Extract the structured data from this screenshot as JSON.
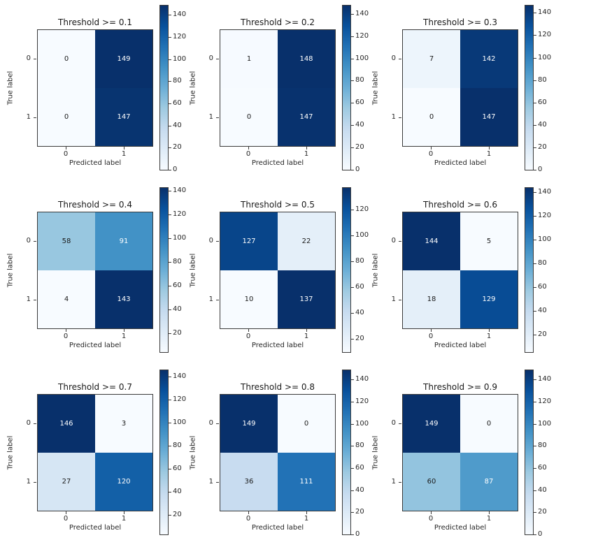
{
  "figure": {
    "background": "#ffffff",
    "description": "3x3 grid of confusion matrices at classification thresholds 0.1 through 0.9"
  },
  "colormap": {
    "name": "Blues",
    "anchors": [
      {
        "t": 0.0,
        "color": "#f7fbff"
      },
      {
        "t": 0.125,
        "color": "#deebf7"
      },
      {
        "t": 0.25,
        "color": "#c6dbef"
      },
      {
        "t": 0.375,
        "color": "#9ecae1"
      },
      {
        "t": 0.5,
        "color": "#6baed6"
      },
      {
        "t": 0.625,
        "color": "#4292c6"
      },
      {
        "t": 0.75,
        "color": "#2171b5"
      },
      {
        "t": 0.875,
        "color": "#08519c"
      },
      {
        "t": 1.0,
        "color": "#08306b"
      }
    ],
    "text_light": "#ffffff",
    "text_dark": "#1a1a1a",
    "axis_color": "#3a3a3a"
  },
  "chart_data": [
    {
      "type": "heatmap",
      "title": "Threshold >= 0.1",
      "xlabel": "Predicted label",
      "ylabel": "True label",
      "xticklabels": [
        "0",
        "1"
      ],
      "yticklabels": [
        "0",
        "1"
      ],
      "matrix": [
        [
          0,
          149
        ],
        [
          0,
          147
        ]
      ],
      "colorbar_ticks": [
        0,
        20,
        40,
        60,
        80,
        100,
        120,
        140
      ]
    },
    {
      "type": "heatmap",
      "title": "Threshold >= 0.2",
      "xlabel": "Predicted label",
      "ylabel": "True label",
      "xticklabels": [
        "0",
        "1"
      ],
      "yticklabels": [
        "0",
        "1"
      ],
      "matrix": [
        [
          1,
          148
        ],
        [
          0,
          147
        ]
      ],
      "colorbar_ticks": [
        0,
        20,
        40,
        60,
        80,
        100,
        120,
        140
      ]
    },
    {
      "type": "heatmap",
      "title": "Threshold >= 0.3",
      "xlabel": "Predicted label",
      "ylabel": "True label",
      "xticklabels": [
        "0",
        "1"
      ],
      "yticklabels": [
        "0",
        "1"
      ],
      "matrix": [
        [
          7,
          142
        ],
        [
          0,
          147
        ]
      ],
      "colorbar_ticks": [
        0,
        20,
        40,
        60,
        80,
        100,
        120,
        140
      ]
    },
    {
      "type": "heatmap",
      "title": "Threshold >= 0.4",
      "xlabel": "Predicted label",
      "ylabel": "True label",
      "xticklabels": [
        "0",
        "1"
      ],
      "yticklabels": [
        "0",
        "1"
      ],
      "matrix": [
        [
          58,
          91
        ],
        [
          4,
          143
        ]
      ],
      "colorbar_ticks": [
        20,
        40,
        60,
        80,
        100,
        120,
        140
      ]
    },
    {
      "type": "heatmap",
      "title": "Threshold >= 0.5",
      "xlabel": "Predicted label",
      "ylabel": "True label",
      "xticklabels": [
        "0",
        "1"
      ],
      "yticklabels": [
        "0",
        "1"
      ],
      "matrix": [
        [
          127,
          22
        ],
        [
          10,
          137
        ]
      ],
      "colorbar_ticks": [
        20,
        40,
        60,
        80,
        100,
        120
      ]
    },
    {
      "type": "heatmap",
      "title": "Threshold >= 0.6",
      "xlabel": "Predicted label",
      "ylabel": "True label",
      "xticklabels": [
        "0",
        "1"
      ],
      "yticklabels": [
        "0",
        "1"
      ],
      "matrix": [
        [
          144,
          5
        ],
        [
          18,
          129
        ]
      ],
      "colorbar_ticks": [
        20,
        40,
        60,
        80,
        100,
        120,
        140
      ]
    },
    {
      "type": "heatmap",
      "title": "Threshold >= 0.7",
      "xlabel": "Predicted label",
      "ylabel": "True label",
      "xticklabels": [
        "0",
        "1"
      ],
      "yticklabels": [
        "0",
        "1"
      ],
      "matrix": [
        [
          146,
          3
        ],
        [
          27,
          120
        ]
      ],
      "colorbar_ticks": [
        20,
        40,
        60,
        80,
        100,
        120,
        140
      ]
    },
    {
      "type": "heatmap",
      "title": "Threshold >= 0.8",
      "xlabel": "Predicted label",
      "ylabel": "True label",
      "xticklabels": [
        "0",
        "1"
      ],
      "yticklabels": [
        "0",
        "1"
      ],
      "matrix": [
        [
          149,
          0
        ],
        [
          36,
          111
        ]
      ],
      "colorbar_ticks": [
        0,
        20,
        40,
        60,
        80,
        100,
        120,
        140
      ]
    },
    {
      "type": "heatmap",
      "title": "Threshold >= 0.9",
      "xlabel": "Predicted label",
      "ylabel": "True label",
      "xticklabels": [
        "0",
        "1"
      ],
      "yticklabels": [
        "0",
        "1"
      ],
      "matrix": [
        [
          149,
          0
        ],
        [
          60,
          87
        ]
      ],
      "colorbar_ticks": [
        0,
        20,
        40,
        60,
        80,
        100,
        120,
        140
      ]
    }
  ]
}
